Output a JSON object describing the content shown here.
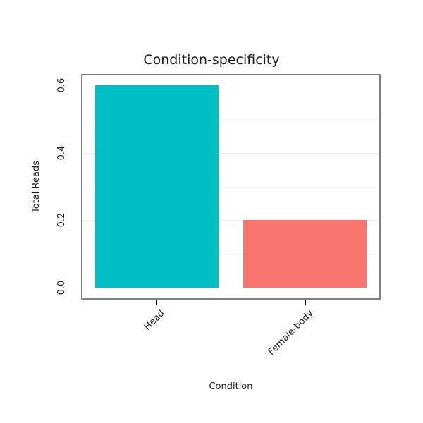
{
  "chart_data": {
    "type": "bar",
    "title": "Condition-specificity",
    "xlabel": "Condition",
    "ylabel": "Total Reads",
    "categories": [
      "Head",
      "Female-body"
    ],
    "values": [
      0.6,
      0.2
    ],
    "bar_colors": [
      "#00BFC4",
      "#F8766D"
    ],
    "y_ticks": [
      0.0,
      0.2,
      0.4,
      0.6
    ],
    "y_tick_labels": [
      "0.0",
      "0.2",
      "0.4",
      "0.6"
    ],
    "ylim": [
      0,
      0.6
    ],
    "grid": "faint horizontal gridlines",
    "legend": "none"
  },
  "colors": {
    "plot_border": "#7f7f7f",
    "grid_major": "#ececec",
    "grid_minor": "#f6f6f6",
    "tick_mark": "#000000",
    "text": "#1a1a1a",
    "background": "#ffffff"
  }
}
